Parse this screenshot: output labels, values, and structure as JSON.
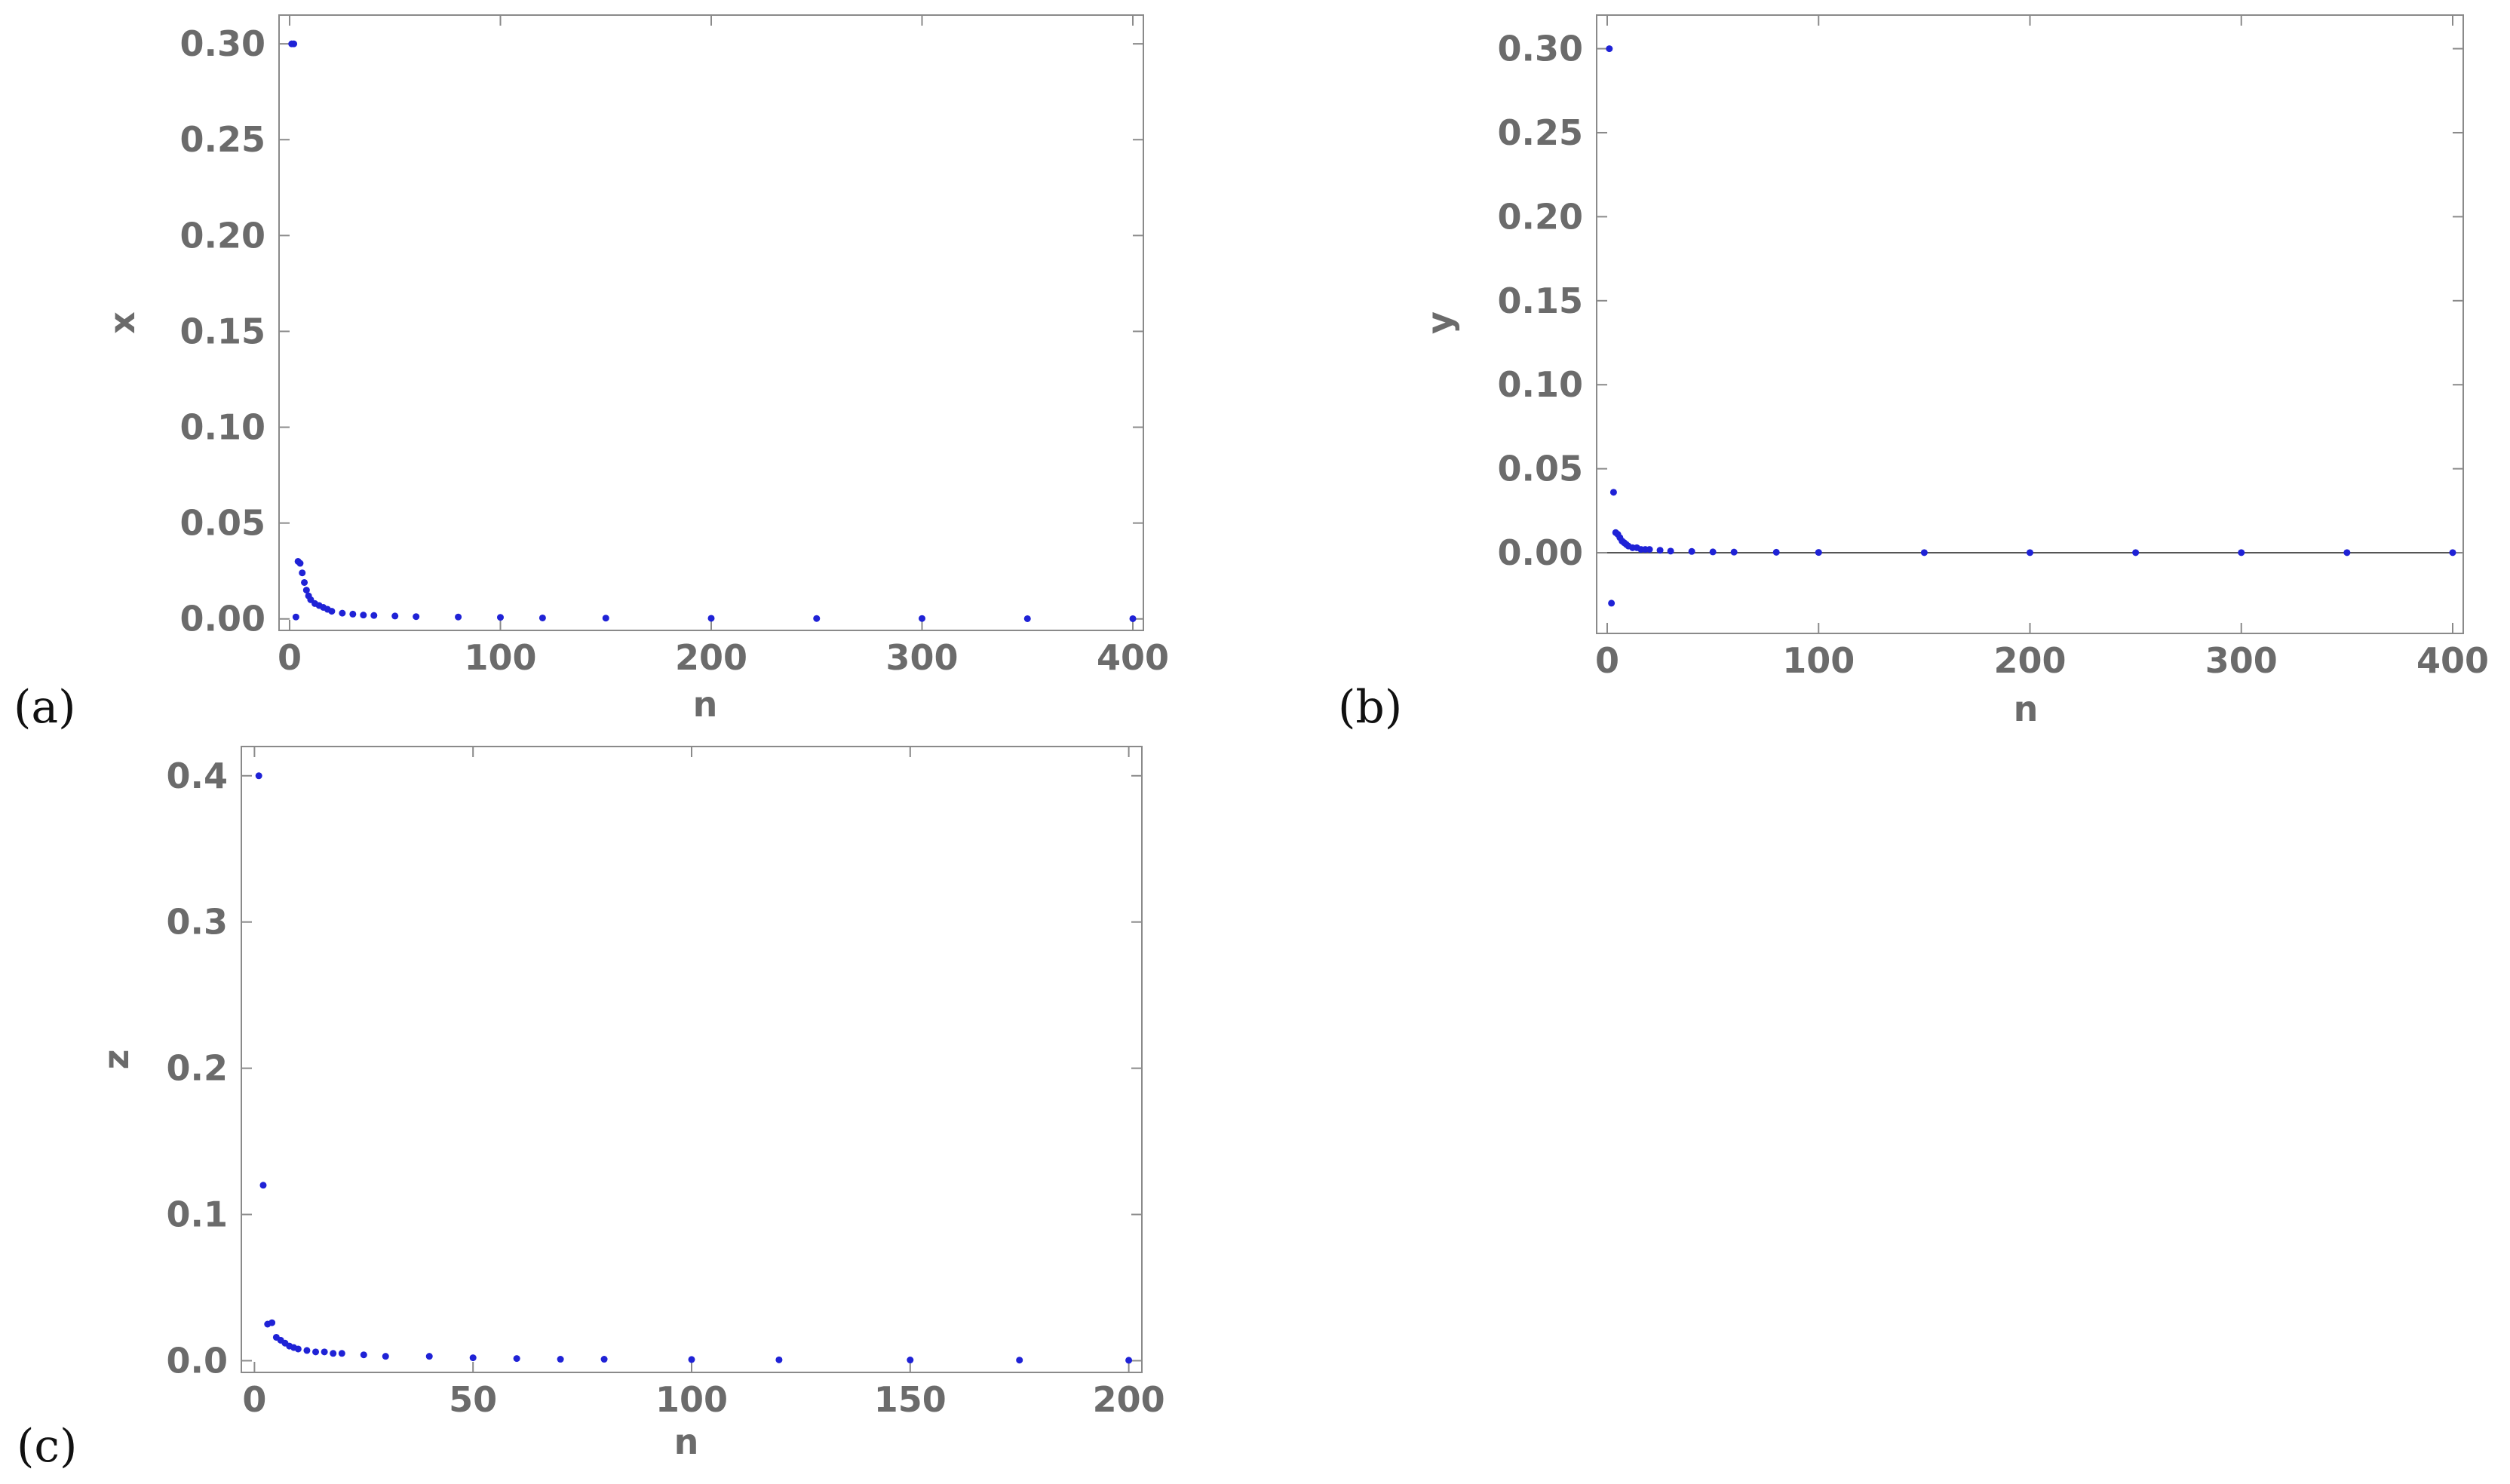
{
  "colors": {
    "frame": "#8a8a8a",
    "tick_text": "#6b6b6b",
    "points": "#1f22d6",
    "zero_line": "#555555"
  },
  "chart_data": [
    {
      "type": "scatter",
      "panel_label": "(a)",
      "title": "",
      "xlabel": "n",
      "ylabel": "x",
      "xlim": [
        -5,
        405
      ],
      "ylim": [
        -0.006,
        0.315
      ],
      "x_ticks": [
        0,
        100,
        200,
        300,
        400
      ],
      "x_tick_labels": [
        "0",
        "100",
        "200",
        "300",
        "400"
      ],
      "y_ticks": [
        0,
        0.05,
        0.1,
        0.15,
        0.2,
        0.25,
        0.3
      ],
      "y_tick_labels": [
        "0.00",
        "0.05",
        "0.10",
        "0.15",
        "0.20",
        "0.25",
        "0.30"
      ],
      "grid": false,
      "series": [
        {
          "x": [
            1,
            2,
            3,
            4,
            5,
            6,
            7,
            8,
            9,
            10,
            12,
            14,
            16,
            18,
            20,
            25,
            30,
            35,
            40,
            50,
            60,
            80,
            100,
            120,
            150,
            200,
            250,
            300,
            350,
            400
          ],
          "y": [
            0.3,
            0.3,
            0.001,
            0.03,
            0.029,
            0.024,
            0.019,
            0.015,
            0.012,
            0.01,
            0.008,
            0.007,
            0.006,
            0.005,
            0.004,
            0.003,
            0.0025,
            0.002,
            0.0018,
            0.0015,
            0.0012,
            0.001,
            0.0008,
            0.0005,
            0.0004,
            0.0003,
            0.0002,
            0.0002,
            0.0001,
            0.0001
          ]
        }
      ]
    },
    {
      "type": "scatter",
      "panel_label": "(b)",
      "title": "",
      "xlabel": "n",
      "ylabel": "y",
      "xlim": [
        -5,
        405
      ],
      "ylim": [
        -0.048,
        0.32
      ],
      "zero_line": true,
      "x_ticks": [
        0,
        100,
        200,
        300,
        400
      ],
      "x_tick_labels": [
        "0",
        "100",
        "200",
        "300",
        "400"
      ],
      "y_ticks": [
        0,
        0.05,
        0.1,
        0.15,
        0.2,
        0.25,
        0.3
      ],
      "y_tick_labels": [
        "0.00",
        "0.05",
        "0.10",
        "0.15",
        "0.20",
        "0.25",
        "0.30"
      ],
      "grid": false,
      "series": [
        {
          "x": [
            1,
            2,
            3,
            4,
            5,
            6,
            7,
            8,
            9,
            10,
            12,
            14,
            16,
            18,
            20,
            25,
            30,
            40,
            50,
            60,
            80,
            100,
            150,
            200,
            250,
            300,
            350,
            400
          ],
          "y": [
            0.3,
            -0.03,
            0.036,
            0.012,
            0.011,
            0.009,
            0.007,
            0.006,
            0.005,
            0.004,
            0.003,
            0.003,
            0.002,
            0.002,
            0.002,
            0.0015,
            0.001,
            0.0008,
            0.0005,
            0.0004,
            0.0003,
            0.0002,
            0.0001,
            0.0001,
            0.0001,
            0.0001,
            0.0001,
            0.0001
          ]
        }
      ]
    },
    {
      "type": "scatter",
      "panel_label": "(c)",
      "title": "",
      "xlabel": "n",
      "ylabel": "z",
      "xlim": [
        -3,
        203
      ],
      "ylim": [
        -0.008,
        0.42
      ],
      "x_ticks": [
        0,
        50,
        100,
        150,
        200
      ],
      "x_tick_labels": [
        "0",
        "50",
        "100",
        "150",
        "200"
      ],
      "y_ticks": [
        0,
        0.1,
        0.2,
        0.3,
        0.4
      ],
      "y_tick_labels": [
        "0.0",
        "0.1",
        "0.2",
        "0.3",
        "0.4"
      ],
      "grid": false,
      "series": [
        {
          "x": [
            1,
            2,
            3,
            4,
            5,
            6,
            7,
            8,
            9,
            10,
            12,
            14,
            16,
            18,
            20,
            25,
            30,
            40,
            50,
            60,
            70,
            80,
            100,
            120,
            150,
            175,
            200
          ],
          "y": [
            0.4,
            0.12,
            0.025,
            0.026,
            0.016,
            0.014,
            0.012,
            0.01,
            0.009,
            0.008,
            0.007,
            0.006,
            0.006,
            0.005,
            0.005,
            0.004,
            0.003,
            0.003,
            0.002,
            0.0015,
            0.001,
            0.001,
            0.0008,
            0.0006,
            0.0005,
            0.0004,
            0.0003
          ]
        }
      ]
    }
  ]
}
